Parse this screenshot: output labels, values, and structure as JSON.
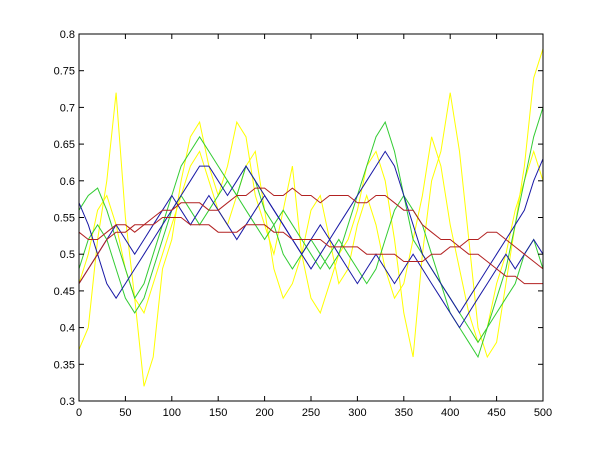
{
  "chart_data": {
    "type": "line",
    "title": "",
    "xlabel": "",
    "ylabel": "",
    "xlim": [
      0,
      500
    ],
    "ylim": [
      0.3,
      0.8
    ],
    "grid": false,
    "x_ticks": [
      0,
      50,
      100,
      150,
      200,
      250,
      300,
      350,
      400,
      450,
      500
    ],
    "y_ticks": [
      0.3,
      0.35,
      0.4,
      0.45,
      0.5,
      0.55,
      0.6,
      0.65,
      0.7,
      0.75,
      0.8
    ],
    "x_tick_labels": [
      "0",
      "50",
      "100",
      "150",
      "200",
      "250",
      "300",
      "350",
      "400",
      "450",
      "500"
    ],
    "y_tick_labels": [
      "0.3",
      "0.35",
      "0.4",
      "0.45",
      "0.5",
      "0.55",
      "0.6",
      "0.65",
      "0.7",
      "0.75",
      "0.8"
    ],
    "series": [
      {
        "color": "#ffff00",
        "x": [
          0,
          10,
          20,
          30,
          40,
          50,
          60,
          70,
          80,
          90,
          100,
          110,
          120,
          130,
          140,
          150,
          160,
          170,
          180,
          190,
          200,
          210,
          220,
          230,
          240,
          250,
          260,
          270,
          280,
          290,
          300,
          310,
          320,
          330,
          340,
          350,
          360,
          370,
          380,
          390,
          400,
          410,
          420,
          430,
          440,
          450,
          460,
          470,
          480,
          490,
          500
        ],
        "values": [
          0.37,
          0.4,
          0.52,
          0.6,
          0.72,
          0.55,
          0.44,
          0.32,
          0.36,
          0.48,
          0.52,
          0.6,
          0.66,
          0.68,
          0.62,
          0.58,
          0.62,
          0.68,
          0.66,
          0.58,
          0.54,
          0.5,
          0.56,
          0.62,
          0.5,
          0.44,
          0.42,
          0.46,
          0.5,
          0.52,
          0.56,
          0.62,
          0.64,
          0.6,
          0.52,
          0.42,
          0.36,
          0.5,
          0.6,
          0.64,
          0.72,
          0.64,
          0.52,
          0.4,
          0.36,
          0.38,
          0.46,
          0.54,
          0.62,
          0.74,
          0.78
        ]
      },
      {
        "color": "#ffff00",
        "x": [
          0,
          10,
          20,
          30,
          40,
          50,
          60,
          70,
          80,
          90,
          100,
          110,
          120,
          130,
          140,
          150,
          160,
          170,
          180,
          190,
          200,
          210,
          220,
          230,
          240,
          250,
          260,
          270,
          280,
          290,
          300,
          310,
          320,
          330,
          340,
          350,
          360,
          370,
          380,
          390,
          400,
          410,
          420,
          430,
          440,
          450,
          460,
          470,
          480,
          490,
          500
        ],
        "values": [
          0.46,
          0.5,
          0.56,
          0.58,
          0.54,
          0.48,
          0.44,
          0.42,
          0.46,
          0.5,
          0.54,
          0.58,
          0.62,
          0.64,
          0.6,
          0.56,
          0.54,
          0.58,
          0.62,
          0.64,
          0.56,
          0.48,
          0.44,
          0.46,
          0.5,
          0.56,
          0.58,
          0.52,
          0.46,
          0.48,
          0.54,
          0.58,
          0.54,
          0.48,
          0.44,
          0.46,
          0.52,
          0.58,
          0.66,
          0.62,
          0.54,
          0.48,
          0.42,
          0.38,
          0.4,
          0.46,
          0.5,
          0.56,
          0.6,
          0.64,
          0.6
        ]
      },
      {
        "color": "#33cc33",
        "x": [
          0,
          10,
          20,
          30,
          40,
          50,
          60,
          70,
          80,
          90,
          100,
          110,
          120,
          130,
          140,
          150,
          160,
          170,
          180,
          190,
          200,
          210,
          220,
          230,
          240,
          250,
          260,
          270,
          280,
          290,
          300,
          310,
          320,
          330,
          340,
          350,
          360,
          370,
          380,
          390,
          400,
          410,
          420,
          430,
          440,
          450,
          460,
          470,
          480,
          490,
          500
        ],
        "values": [
          0.56,
          0.58,
          0.59,
          0.56,
          0.52,
          0.48,
          0.44,
          0.46,
          0.5,
          0.54,
          0.58,
          0.62,
          0.64,
          0.66,
          0.64,
          0.62,
          0.6,
          0.58,
          0.62,
          0.6,
          0.56,
          0.54,
          0.5,
          0.48,
          0.5,
          0.52,
          0.5,
          0.48,
          0.5,
          0.54,
          0.58,
          0.62,
          0.66,
          0.68,
          0.64,
          0.58,
          0.52,
          0.5,
          0.48,
          0.46,
          0.42,
          0.4,
          0.38,
          0.36,
          0.4,
          0.44,
          0.48,
          0.54,
          0.6,
          0.66,
          0.7
        ]
      },
      {
        "color": "#33cc33",
        "x": [
          0,
          10,
          20,
          30,
          40,
          50,
          60,
          70,
          80,
          90,
          100,
          110,
          120,
          130,
          140,
          150,
          160,
          170,
          180,
          190,
          200,
          210,
          220,
          230,
          240,
          250,
          260,
          270,
          280,
          290,
          300,
          310,
          320,
          330,
          340,
          350,
          360,
          370,
          380,
          390,
          400,
          410,
          420,
          430,
          440,
          450,
          460,
          470,
          480,
          490,
          500
        ],
        "values": [
          0.48,
          0.52,
          0.54,
          0.52,
          0.48,
          0.44,
          0.42,
          0.44,
          0.48,
          0.52,
          0.56,
          0.58,
          0.56,
          0.54,
          0.56,
          0.58,
          0.6,
          0.58,
          0.56,
          0.54,
          0.52,
          0.54,
          0.56,
          0.54,
          0.52,
          0.5,
          0.48,
          0.5,
          0.52,
          0.5,
          0.48,
          0.46,
          0.48,
          0.52,
          0.56,
          0.58,
          0.56,
          0.54,
          0.5,
          0.46,
          0.44,
          0.42,
          0.4,
          0.38,
          0.4,
          0.42,
          0.44,
          0.46,
          0.5,
          0.52,
          0.48
        ]
      },
      {
        "color": "#1a1aa6",
        "x": [
          0,
          10,
          20,
          30,
          40,
          50,
          60,
          70,
          80,
          90,
          100,
          110,
          120,
          130,
          140,
          150,
          160,
          170,
          180,
          190,
          200,
          210,
          220,
          230,
          240,
          250,
          260,
          270,
          280,
          290,
          300,
          310,
          320,
          330,
          340,
          350,
          360,
          370,
          380,
          390,
          400,
          410,
          420,
          430,
          440,
          450,
          460,
          470,
          480,
          490,
          500
        ],
        "values": [
          0.57,
          0.54,
          0.5,
          0.46,
          0.44,
          0.46,
          0.48,
          0.5,
          0.52,
          0.54,
          0.56,
          0.58,
          0.6,
          0.62,
          0.62,
          0.6,
          0.58,
          0.6,
          0.62,
          0.6,
          0.58,
          0.56,
          0.54,
          0.52,
          0.5,
          0.48,
          0.5,
          0.52,
          0.54,
          0.56,
          0.58,
          0.6,
          0.62,
          0.64,
          0.62,
          0.58,
          0.54,
          0.5,
          0.48,
          0.46,
          0.44,
          0.42,
          0.44,
          0.46,
          0.48,
          0.5,
          0.52,
          0.54,
          0.56,
          0.6,
          0.63
        ]
      },
      {
        "color": "#1a1aa6",
        "x": [
          0,
          10,
          20,
          30,
          40,
          50,
          60,
          70,
          80,
          90,
          100,
          110,
          120,
          130,
          140,
          150,
          160,
          170,
          180,
          190,
          200,
          210,
          220,
          230,
          240,
          250,
          260,
          270,
          280,
          290,
          300,
          310,
          320,
          330,
          340,
          350,
          360,
          370,
          380,
          390,
          400,
          410,
          420,
          430,
          440,
          450,
          460,
          470,
          480,
          490,
          500
        ],
        "values": [
          0.46,
          0.48,
          0.5,
          0.52,
          0.54,
          0.52,
          0.5,
          0.52,
          0.54,
          0.56,
          0.58,
          0.56,
          0.54,
          0.56,
          0.58,
          0.56,
          0.54,
          0.52,
          0.54,
          0.56,
          0.58,
          0.56,
          0.54,
          0.52,
          0.5,
          0.52,
          0.54,
          0.52,
          0.5,
          0.48,
          0.46,
          0.48,
          0.5,
          0.48,
          0.46,
          0.48,
          0.5,
          0.48,
          0.46,
          0.44,
          0.42,
          0.4,
          0.42,
          0.44,
          0.46,
          0.48,
          0.5,
          0.48,
          0.5,
          0.52,
          0.5
        ]
      },
      {
        "color": "#b22222",
        "x": [
          0,
          10,
          20,
          30,
          40,
          50,
          60,
          70,
          80,
          90,
          100,
          110,
          120,
          130,
          140,
          150,
          160,
          170,
          180,
          190,
          200,
          210,
          220,
          230,
          240,
          250,
          260,
          270,
          280,
          290,
          300,
          310,
          320,
          330,
          340,
          350,
          360,
          370,
          380,
          390,
          400,
          410,
          420,
          430,
          440,
          450,
          460,
          470,
          480,
          490,
          500
        ],
        "values": [
          0.53,
          0.52,
          0.52,
          0.53,
          0.54,
          0.54,
          0.53,
          0.54,
          0.55,
          0.56,
          0.56,
          0.57,
          0.57,
          0.57,
          0.56,
          0.56,
          0.57,
          0.58,
          0.58,
          0.59,
          0.59,
          0.58,
          0.58,
          0.59,
          0.58,
          0.58,
          0.57,
          0.58,
          0.58,
          0.58,
          0.57,
          0.57,
          0.58,
          0.58,
          0.57,
          0.56,
          0.56,
          0.54,
          0.53,
          0.52,
          0.52,
          0.51,
          0.5,
          0.5,
          0.49,
          0.48,
          0.47,
          0.47,
          0.46,
          0.46,
          0.46
        ]
      },
      {
        "color": "#b22222",
        "x": [
          0,
          10,
          20,
          30,
          40,
          50,
          60,
          70,
          80,
          90,
          100,
          110,
          120,
          130,
          140,
          150,
          160,
          170,
          180,
          190,
          200,
          210,
          220,
          230,
          240,
          250,
          260,
          270,
          280,
          290,
          300,
          310,
          320,
          330,
          340,
          350,
          360,
          370,
          380,
          390,
          400,
          410,
          420,
          430,
          440,
          450,
          460,
          470,
          480,
          490,
          500
        ],
        "values": [
          0.46,
          0.48,
          0.5,
          0.52,
          0.53,
          0.53,
          0.54,
          0.54,
          0.54,
          0.55,
          0.55,
          0.55,
          0.54,
          0.54,
          0.54,
          0.53,
          0.53,
          0.53,
          0.54,
          0.54,
          0.54,
          0.53,
          0.53,
          0.52,
          0.52,
          0.52,
          0.52,
          0.51,
          0.51,
          0.51,
          0.51,
          0.5,
          0.5,
          0.5,
          0.5,
          0.49,
          0.49,
          0.49,
          0.5,
          0.5,
          0.51,
          0.51,
          0.52,
          0.52,
          0.53,
          0.53,
          0.52,
          0.51,
          0.5,
          0.49,
          0.48
        ]
      }
    ]
  }
}
